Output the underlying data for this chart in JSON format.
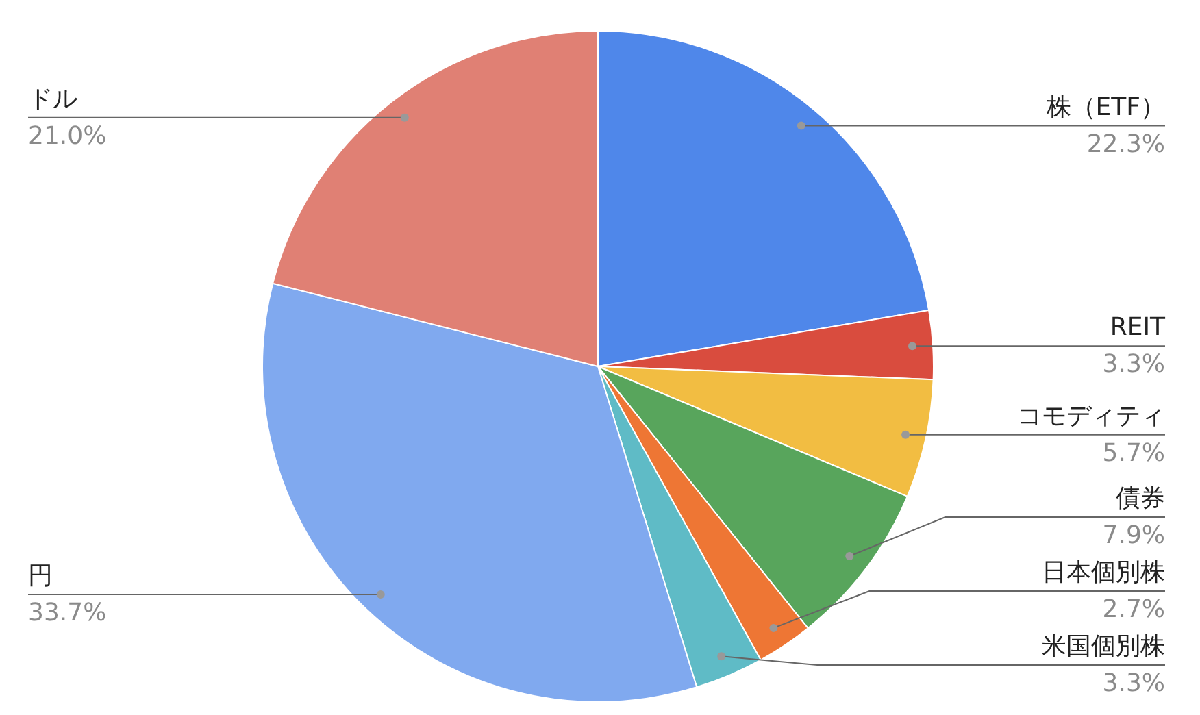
{
  "chart_data": {
    "type": "pie",
    "categories": [
      "株（ETF）",
      "REIT",
      "コモディティ",
      "債券",
      "日本個別株",
      "米国個別株",
      "円",
      "ドル"
    ],
    "values": [
      22.3,
      3.3,
      5.7,
      7.9,
      2.7,
      3.3,
      33.7,
      21.0
    ],
    "value_labels": [
      "22.3%",
      "3.3%",
      "5.7%",
      "7.9%",
      "2.7%",
      "3.3%",
      "33.7%",
      "21.0%"
    ],
    "colors": [
      "#4f87ea",
      "#d94c3e",
      "#f2bd42",
      "#58a55c",
      "#ee7634",
      "#5fbbc6",
      "#80a9ef",
      "#e08074"
    ]
  }
}
